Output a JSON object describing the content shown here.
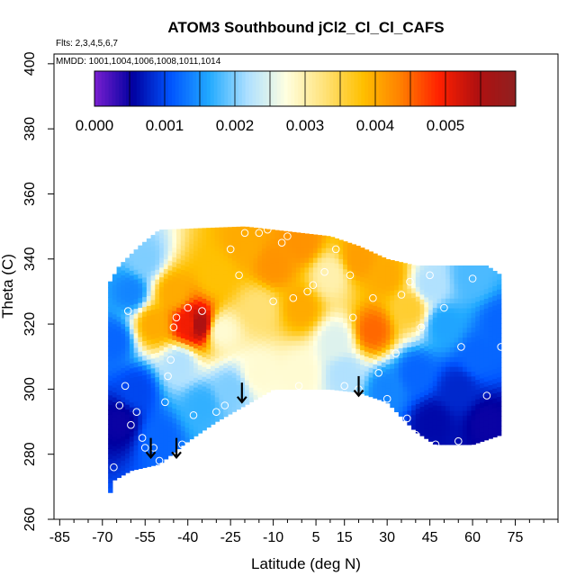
{
  "chart_data": {
    "type": "heatmap",
    "title": "ATOM3 Southbound jCl2_Cl_Cl_CAFS",
    "flights_label": "Flts: 2,3,4,5,6,7",
    "dates_label": "MMDD: 1001,1004,1006,1008,1011,1014",
    "xlabel": "Latitude (deg N)",
    "ylabel": "Theta (C)",
    "xlim": [
      -87,
      90
    ],
    "ylim": [
      260,
      403
    ],
    "x_ticks": [
      -85,
      -70,
      -55,
      -40,
      -25,
      -10,
      5,
      15,
      30,
      45,
      60,
      75
    ],
    "y_ticks": [
      260,
      280,
      300,
      320,
      340,
      360,
      380,
      400
    ],
    "colorbar": {
      "min": 0.0,
      "max": 0.006,
      "ticks": [
        0.0,
        0.001,
        0.002,
        0.003,
        0.004,
        0.005
      ],
      "tick_labels": [
        "0.000",
        "0.001",
        "0.002",
        "0.003",
        "0.004",
        "0.005"
      ],
      "colors": [
        "#7a1fd0",
        "#0000a0",
        "#0055ff",
        "#22aaff",
        "#aee0ff",
        "#ffffe0",
        "#ffe27a",
        "#ffc000",
        "#ff8000",
        "#ff2000",
        "#b01010",
        "#902020"
      ]
    },
    "floor_boundary": [
      [
        -68,
        266
      ],
      [
        -66,
        272
      ],
      [
        -60,
        275
      ],
      [
        -50,
        277
      ],
      [
        -40,
        284
      ],
      [
        -30,
        290
      ],
      [
        -20,
        295
      ],
      [
        -10,
        300
      ],
      [
        0,
        300
      ],
      [
        10,
        300
      ],
      [
        20,
        299
      ],
      [
        30,
        296
      ],
      [
        40,
        287
      ],
      [
        47,
        283
      ],
      [
        60,
        283
      ],
      [
        70,
        286
      ]
    ],
    "ceiling_boundary": [
      [
        -68,
        332
      ],
      [
        -64,
        338
      ],
      [
        -57,
        344
      ],
      [
        -50,
        349
      ],
      [
        -20,
        350
      ],
      [
        -10,
        349
      ],
      [
        10,
        347
      ],
      [
        20,
        344
      ],
      [
        30,
        340
      ],
      [
        40,
        338
      ],
      [
        55,
        338
      ],
      [
        65,
        338
      ],
      [
        70,
        335
      ]
    ],
    "field_anchors": [
      {
        "lat": -66,
        "theta": 315,
        "value": 0.0012
      },
      {
        "lat": -64,
        "theta": 290,
        "value": 0.0005
      },
      {
        "lat": -60,
        "theta": 330,
        "value": 0.0014
      },
      {
        "lat": -58,
        "theta": 300,
        "value": 0.001
      },
      {
        "lat": -55,
        "theta": 340,
        "value": 0.002
      },
      {
        "lat": -52,
        "theta": 320,
        "value": 0.004
      },
      {
        "lat": -50,
        "theta": 285,
        "value": 0.0012
      },
      {
        "lat": -45,
        "theta": 330,
        "value": 0.004
      },
      {
        "lat": -43,
        "theta": 308,
        "value": 0.0022
      },
      {
        "lat": -40,
        "theta": 320,
        "value": 0.005
      },
      {
        "lat": -36,
        "theta": 320,
        "value": 0.0055
      },
      {
        "lat": -35,
        "theta": 295,
        "value": 0.0017
      },
      {
        "lat": -30,
        "theta": 335,
        "value": 0.0038
      },
      {
        "lat": -28,
        "theta": 318,
        "value": 0.0028
      },
      {
        "lat": -25,
        "theta": 300,
        "value": 0.002
      },
      {
        "lat": -20,
        "theta": 345,
        "value": 0.004
      },
      {
        "lat": -15,
        "theta": 325,
        "value": 0.0033
      },
      {
        "lat": -15,
        "theta": 305,
        "value": 0.0028
      },
      {
        "lat": -10,
        "theta": 338,
        "value": 0.0042
      },
      {
        "lat": 0,
        "theta": 345,
        "value": 0.0042
      },
      {
        "lat": 0,
        "theta": 325,
        "value": 0.004
      },
      {
        "lat": 0,
        "theta": 305,
        "value": 0.0028
      },
      {
        "lat": 10,
        "theta": 335,
        "value": 0.003
      },
      {
        "lat": 12,
        "theta": 315,
        "value": 0.0025
      },
      {
        "lat": 15,
        "theta": 305,
        "value": 0.0022
      },
      {
        "lat": 20,
        "theta": 340,
        "value": 0.0041
      },
      {
        "lat": 25,
        "theta": 318,
        "value": 0.0045
      },
      {
        "lat": 30,
        "theta": 335,
        "value": 0.004
      },
      {
        "lat": 30,
        "theta": 300,
        "value": 0.0014
      },
      {
        "lat": 38,
        "theta": 325,
        "value": 0.0036
      },
      {
        "lat": 40,
        "theta": 305,
        "value": 0.0012
      },
      {
        "lat": 45,
        "theta": 332,
        "value": 0.0022
      },
      {
        "lat": 46,
        "theta": 290,
        "value": 0.0006
      },
      {
        "lat": 50,
        "theta": 320,
        "value": 0.0016
      },
      {
        "lat": 55,
        "theta": 300,
        "value": 0.0008
      },
      {
        "lat": 60,
        "theta": 335,
        "value": 0.0018
      },
      {
        "lat": 62,
        "theta": 310,
        "value": 0.0012
      },
      {
        "lat": 65,
        "theta": 290,
        "value": 0.0005
      },
      {
        "lat": 70,
        "theta": 320,
        "value": 0.0012
      }
    ],
    "observations": [
      {
        "lat": -66,
        "theta": 276
      },
      {
        "lat": -64,
        "theta": 295
      },
      {
        "lat": -62,
        "theta": 301
      },
      {
        "lat": -61,
        "theta": 324
      },
      {
        "lat": -60,
        "theta": 289
      },
      {
        "lat": -58,
        "theta": 293
      },
      {
        "lat": -56,
        "theta": 285
      },
      {
        "lat": -55,
        "theta": 282
      },
      {
        "lat": -52,
        "theta": 282
      },
      {
        "lat": -50,
        "theta": 278
      },
      {
        "lat": -48,
        "theta": 296
      },
      {
        "lat": -47,
        "theta": 304
      },
      {
        "lat": -46,
        "theta": 309
      },
      {
        "lat": -45,
        "theta": 319
      },
      {
        "lat": -44,
        "theta": 322
      },
      {
        "lat": -42,
        "theta": 283
      },
      {
        "lat": -40,
        "theta": 325
      },
      {
        "lat": -38,
        "theta": 292
      },
      {
        "lat": -35,
        "theta": 324
      },
      {
        "lat": -30,
        "theta": 293
      },
      {
        "lat": -27,
        "theta": 295
      },
      {
        "lat": -25,
        "theta": 343
      },
      {
        "lat": -22,
        "theta": 335
      },
      {
        "lat": -20,
        "theta": 348
      },
      {
        "lat": -15,
        "theta": 348
      },
      {
        "lat": -12,
        "theta": 349
      },
      {
        "lat": -10,
        "theta": 327
      },
      {
        "lat": -7,
        "theta": 345
      },
      {
        "lat": -5,
        "theta": 347
      },
      {
        "lat": -3,
        "theta": 328
      },
      {
        "lat": -1,
        "theta": 301
      },
      {
        "lat": 2,
        "theta": 330
      },
      {
        "lat": 4,
        "theta": 332
      },
      {
        "lat": 6,
        "theta": 349
      },
      {
        "lat": 8,
        "theta": 336
      },
      {
        "lat": 12,
        "theta": 343
      },
      {
        "lat": 15,
        "theta": 301
      },
      {
        "lat": 17,
        "theta": 335
      },
      {
        "lat": 18,
        "theta": 322
      },
      {
        "lat": 20,
        "theta": 300
      },
      {
        "lat": 22,
        "theta": 346
      },
      {
        "lat": 25,
        "theta": 328
      },
      {
        "lat": 27,
        "theta": 305
      },
      {
        "lat": 30,
        "theta": 297
      },
      {
        "lat": 33,
        "theta": 311
      },
      {
        "lat": 35,
        "theta": 329
      },
      {
        "lat": 37,
        "theta": 291
      },
      {
        "lat": 38,
        "theta": 333
      },
      {
        "lat": 40,
        "theta": 286
      },
      {
        "lat": 42,
        "theta": 319
      },
      {
        "lat": 45,
        "theta": 335
      },
      {
        "lat": 47,
        "theta": 283
      },
      {
        "lat": 50,
        "theta": 325
      },
      {
        "lat": 55,
        "theta": 284
      },
      {
        "lat": 56,
        "theta": 313
      },
      {
        "lat": 60,
        "theta": 334
      },
      {
        "lat": 65,
        "theta": 298
      },
      {
        "lat": 70,
        "theta": 313
      }
    ],
    "arrows": [
      {
        "lat": -53,
        "theta": 285
      },
      {
        "lat": -44,
        "theta": 285
      },
      {
        "lat": -21,
        "theta": 302
      },
      {
        "lat": 20,
        "theta": 304
      }
    ]
  }
}
